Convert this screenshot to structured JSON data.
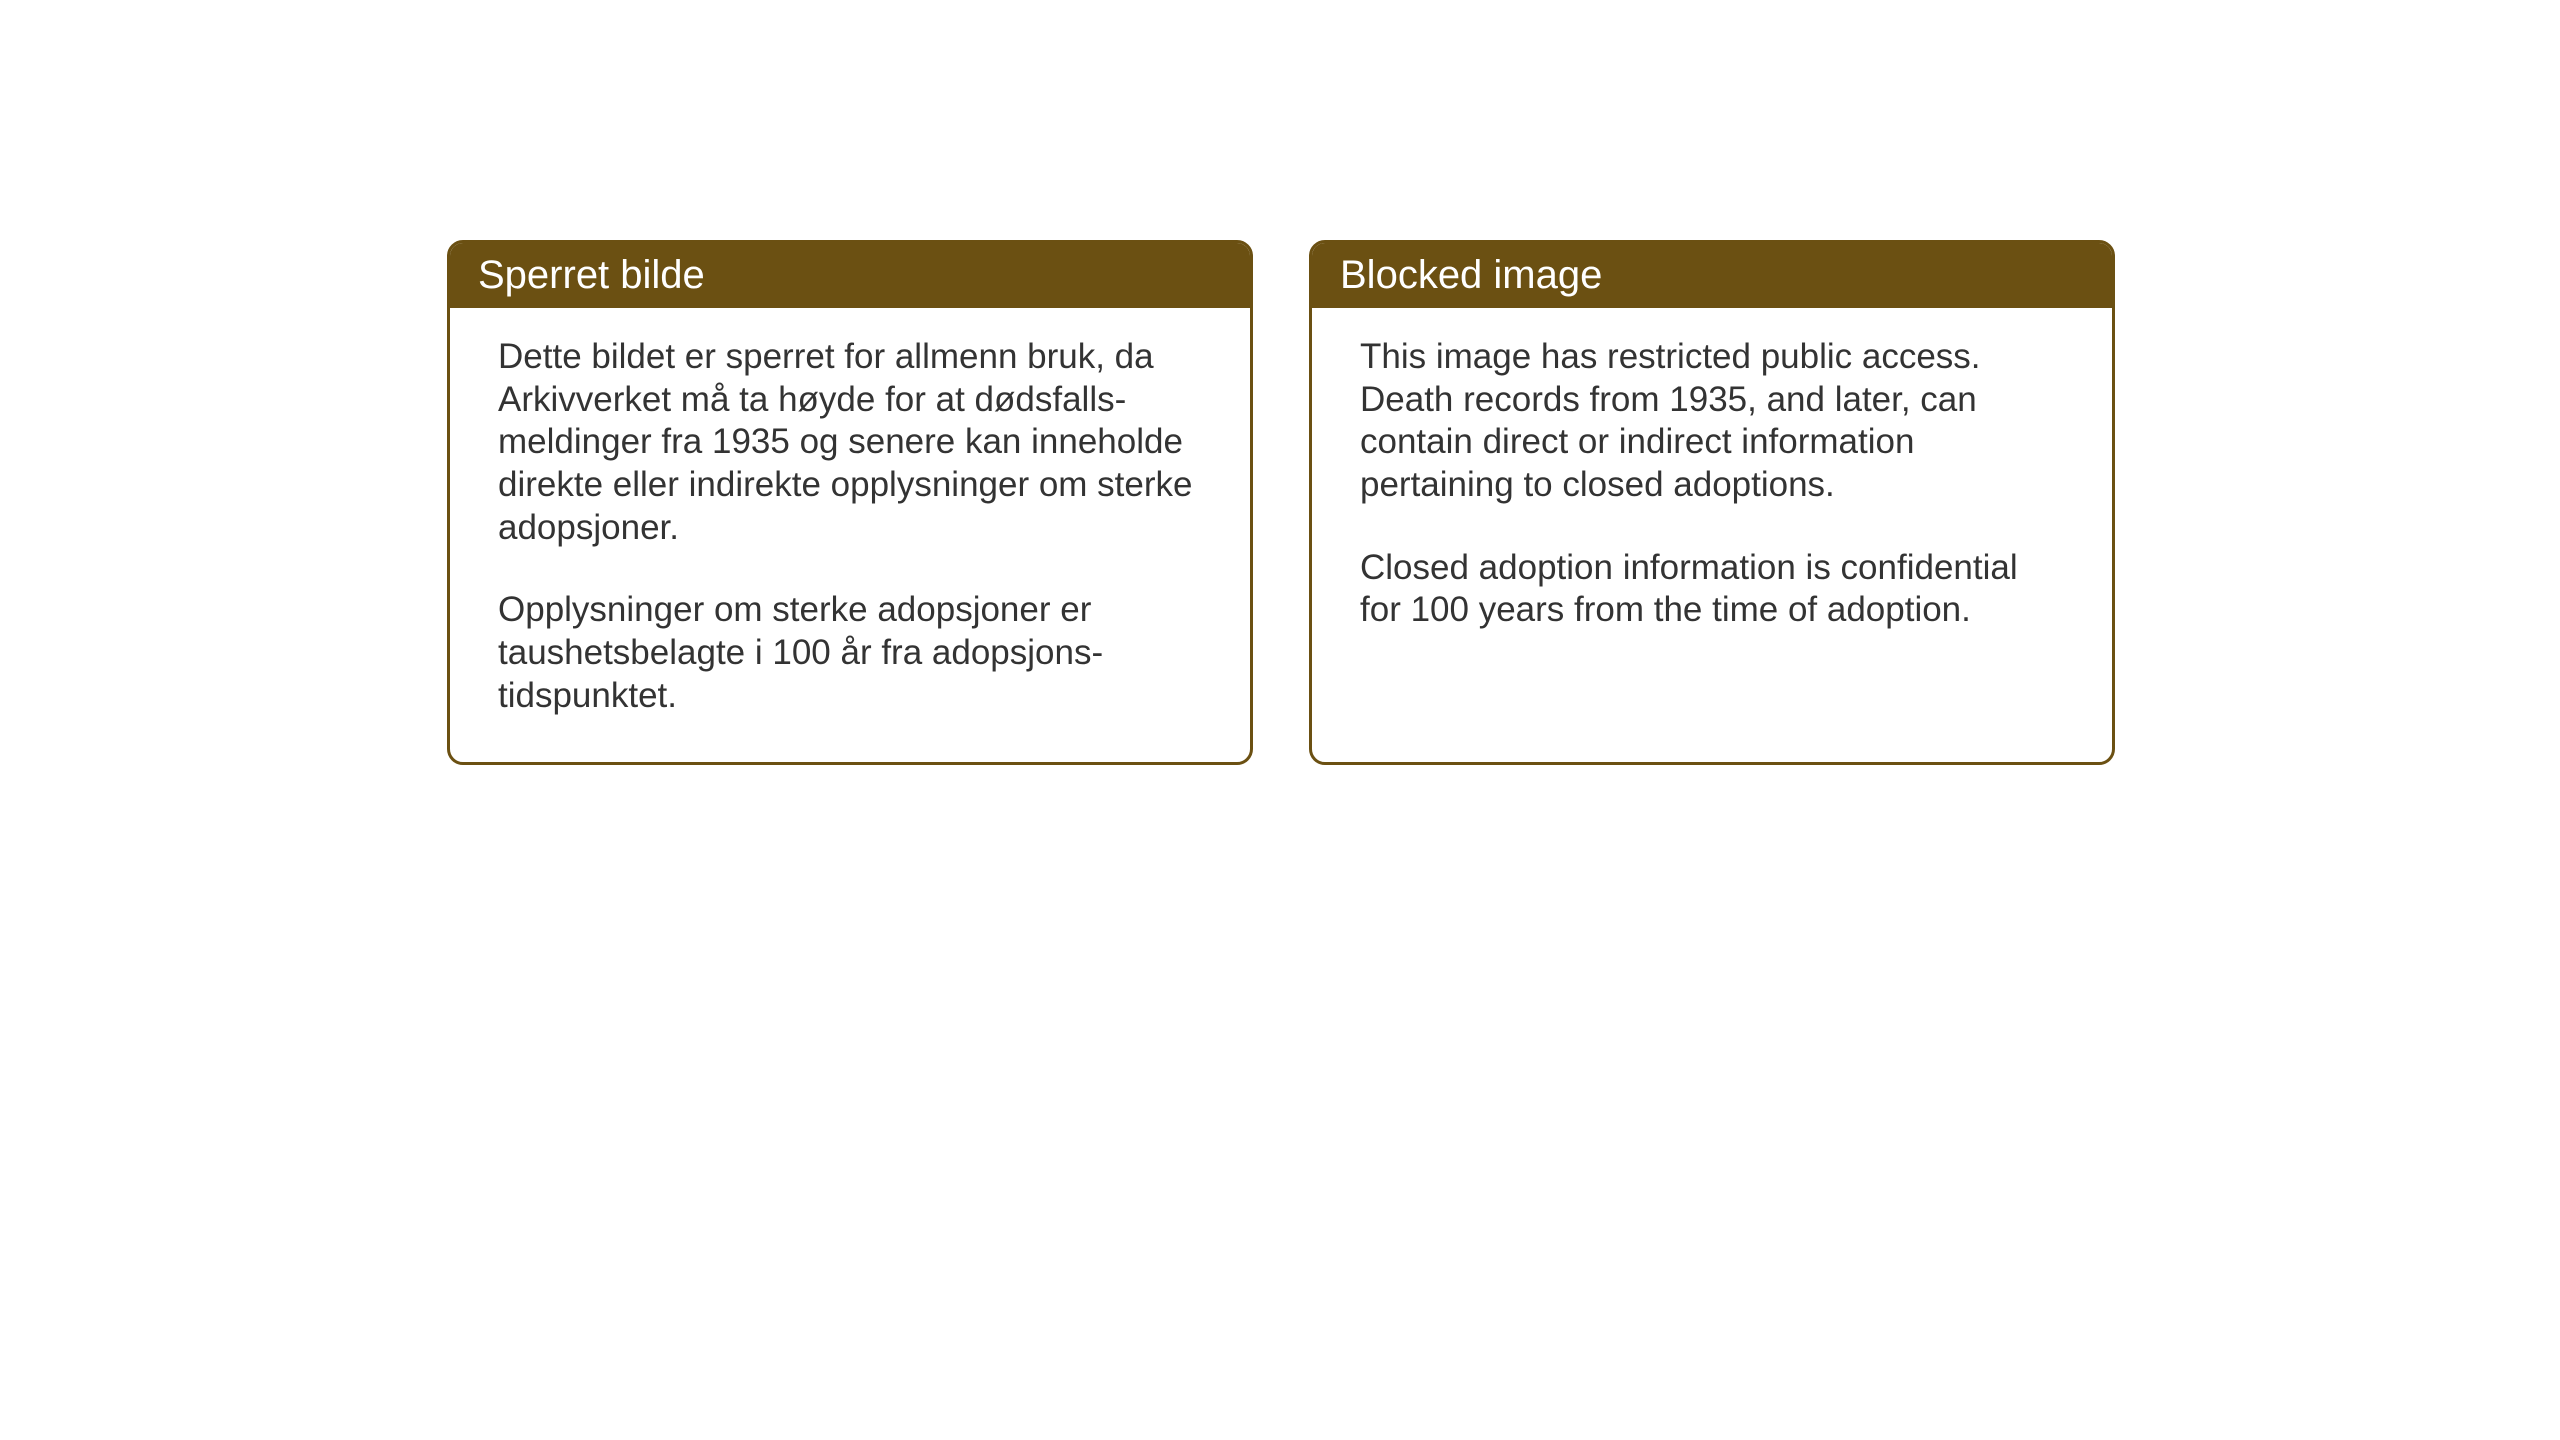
{
  "layout": {
    "background_color": "#ffffff",
    "card_border_color": "#6b5012",
    "card_header_bg": "#6b5012",
    "card_header_text_color": "#ffffff",
    "card_body_text_color": "#333333",
    "card_border_radius": 16,
    "card_border_width": 3,
    "header_fontsize": 40,
    "body_fontsize": 35
  },
  "cards": [
    {
      "title": "Sperret bilde",
      "paragraph1": "Dette bildet er sperret for allmenn bruk, da Arkivverket må ta høyde for at dødsfalls-meldinger fra 1935 og senere kan inneholde direkte eller indirekte opplysninger om sterke adopsjoner.",
      "paragraph2": "Opplysninger om sterke adopsjoner er taushetsbelagte i 100 år fra adopsjons-tidspunktet."
    },
    {
      "title": "Blocked image",
      "paragraph1": "This image has restricted public access. Death records from 1935, and later, can contain direct or indirect information pertaining to closed adoptions.",
      "paragraph2": "Closed adoption information is confidential for 100 years from the time of adoption."
    }
  ]
}
